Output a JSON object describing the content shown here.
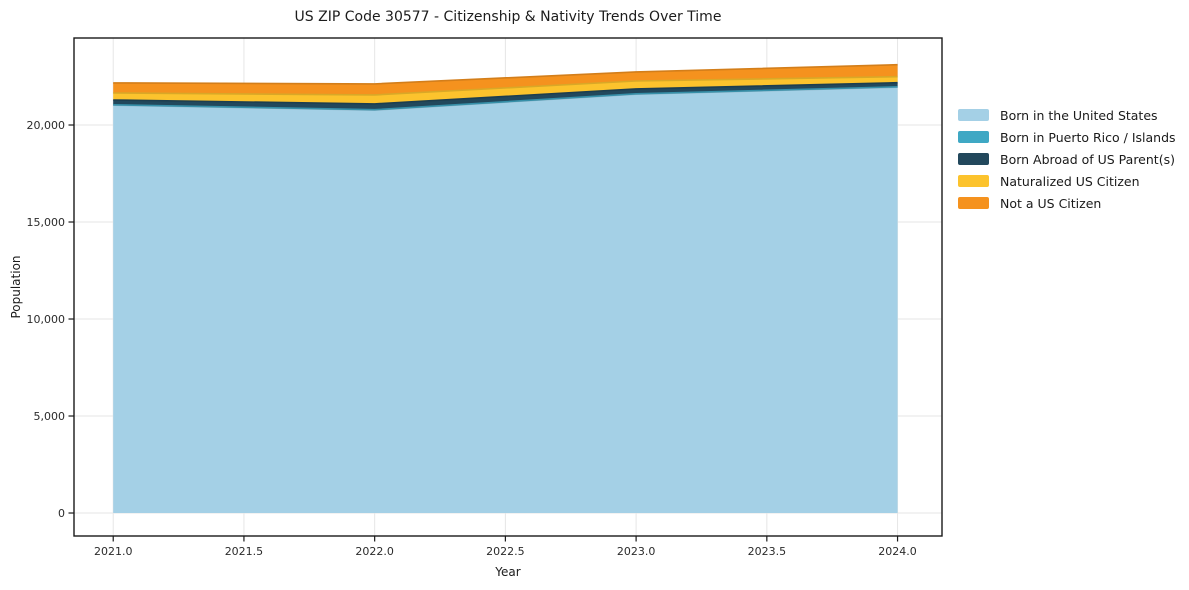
{
  "chart_data": {
    "type": "area",
    "stacked": true,
    "title": "US ZIP Code 30577 - Citizenship & Nativity Trends Over Time",
    "xlabel": "Year",
    "ylabel": "Population",
    "x": [
      2021,
      2022,
      2023,
      2024
    ],
    "series": [
      {
        "name": "Born in the United States",
        "color": "#a4d0e6",
        "values": [
          21020,
          20770,
          21590,
          21950
        ]
      },
      {
        "name": "Born in Puerto Rico / Islands",
        "color": "#3fa8c4",
        "values": [
          20,
          20,
          20,
          20
        ]
      },
      {
        "name": "Born Abroad of US Parent(s)",
        "color": "#22485c",
        "values": [
          250,
          300,
          250,
          210
        ]
      },
      {
        "name": "Naturalized US Citizen",
        "color": "#fcc32d",
        "values": [
          360,
          460,
          410,
          310
        ]
      },
      {
        "name": "Not a US Citizen",
        "color": "#f5921e",
        "values": [
          520,
          570,
          470,
          620
        ]
      }
    ],
    "xticks": {
      "values": [
        2021.0,
        2021.5,
        2022.0,
        2022.5,
        2023.0,
        2023.5,
        2024.0
      ],
      "labels": [
        "2021.0",
        "2021.5",
        "2022.0",
        "2022.5",
        "2023.0",
        "2023.5",
        "2024.0"
      ]
    },
    "yticks": {
      "values": [
        0,
        5000,
        10000,
        15000,
        20000
      ],
      "labels": [
        "0",
        "5,000",
        "10,000",
        "15,000",
        "20,000"
      ]
    },
    "xlim": [
      2020.85,
      2024.17
    ],
    "ylim": [
      -1185,
      24485
    ],
    "grid": true,
    "legend_position": "right-outside",
    "colors": {
      "grid": "#e6e6e6",
      "frame": "#1a1a1a",
      "tick_label": "#2b2b2b"
    }
  }
}
